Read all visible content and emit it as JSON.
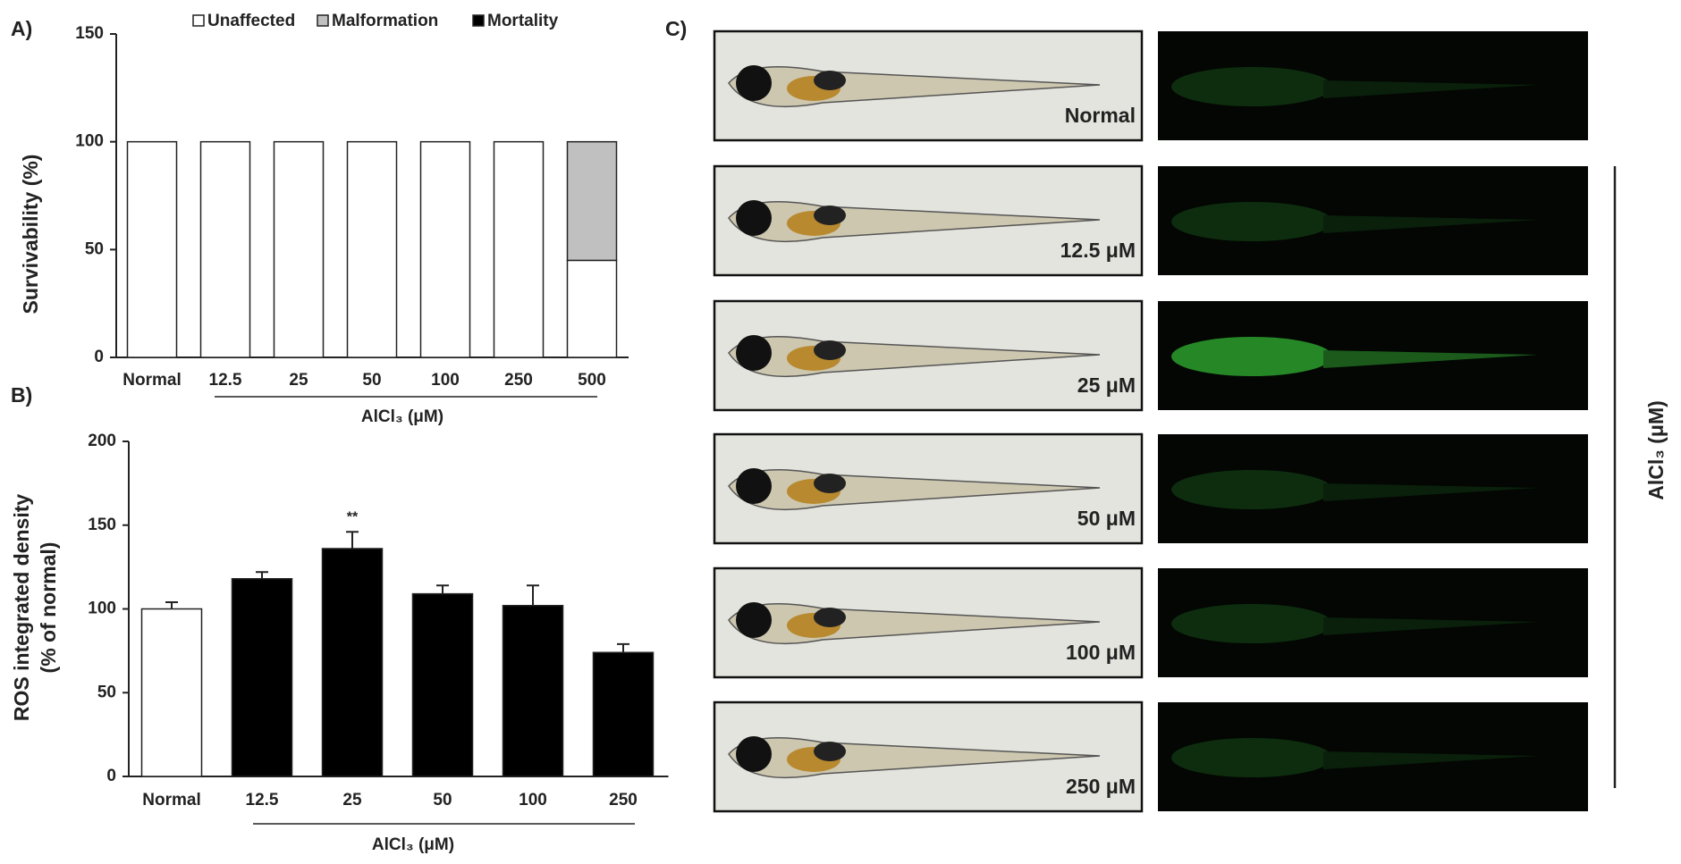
{
  "chart_data": [
    {
      "type": "stacked_bar",
      "panel_label": "A)",
      "y_label": "Survivability (%)",
      "x_group_label": "AlCl₃ (μM)",
      "categories": [
        "Normal",
        "12.5",
        "25",
        "50",
        "100",
        "250",
        "500"
      ],
      "series": [
        {
          "name": "Unaffected",
          "color": "#ffffff",
          "values": [
            100,
            100,
            100,
            100,
            100,
            100,
            45
          ]
        },
        {
          "name": "Malformation",
          "color": "#c0c0c0",
          "values": [
            0,
            0,
            0,
            0,
            0,
            0,
            55
          ]
        },
        {
          "name": "Mortality",
          "color": "#000000",
          "values": [
            0,
            0,
            0,
            0,
            0,
            0,
            0
          ]
        }
      ],
      "ylim": [
        0,
        150
      ],
      "yticks": [
        0,
        50,
        100,
        150
      ],
      "legend": "top"
    },
    {
      "type": "bar",
      "panel_label": "B)",
      "y_label": [
        "ROS integrated density",
        "(% of normal)"
      ],
      "x_group_label": "AlCl₃ (μM)",
      "categories": [
        "Normal",
        "12.5",
        "25",
        "50",
        "100",
        "250"
      ],
      "values": [
        100,
        118,
        136,
        109,
        102,
        74
      ],
      "errors": [
        4,
        4,
        10,
        5,
        12,
        5
      ],
      "colors": [
        "#ffffff",
        "#000000",
        "#000000",
        "#000000",
        "#000000",
        "#000000"
      ],
      "annotations": [
        {
          "text": "**",
          "x": "25"
        }
      ],
      "ylim": [
        0,
        200
      ],
      "yticks": [
        0,
        50,
        100,
        150,
        200
      ]
    }
  ],
  "panel_c": {
    "label": "C)",
    "side_label": "AlCl₃ (μM)",
    "images": [
      "Normal",
      "12.5 μM",
      "25 μM",
      "50 μM",
      "100 μM",
      "250 μM"
    ]
  }
}
